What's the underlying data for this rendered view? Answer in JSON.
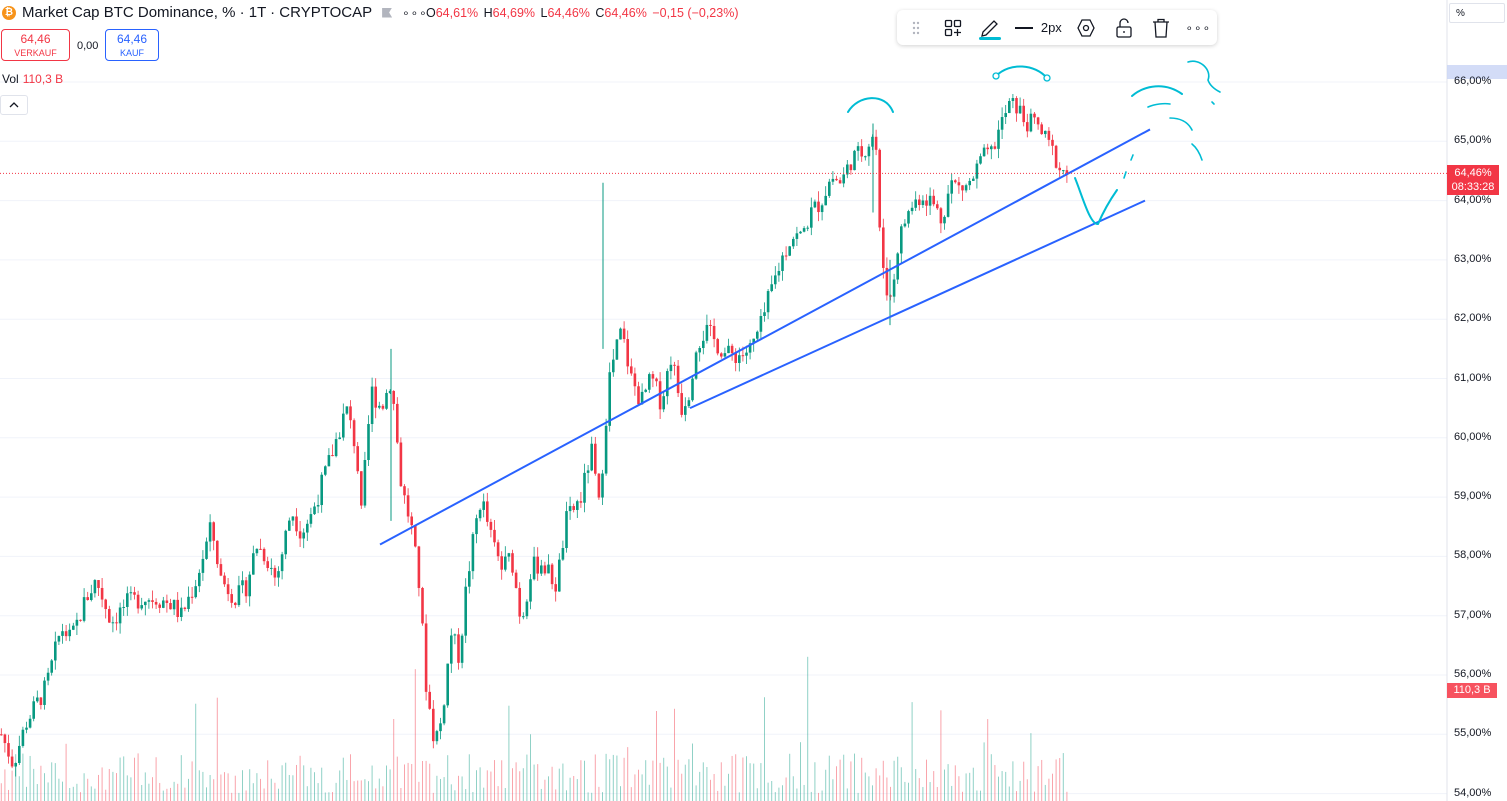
{
  "header": {
    "coin_icon": "bitcoin-icon",
    "coin_glyph": "₿",
    "title": "Market Cap BTC Dominance, % · 1T · CRYPTOCAP",
    "more": "∘∘∘"
  },
  "ohlc": {
    "o_label": "O",
    "o_value": "64,61%",
    "h_label": "H",
    "h_value": "64,69%",
    "l_label": "L",
    "l_value": "64,46%",
    "c_label": "C",
    "c_value": "64,46%",
    "change": "−0,15 (−0,23%)"
  },
  "trade": {
    "sell_price": "64,46",
    "sell_label": "VERKAUF",
    "spread": "0,00",
    "buy_price": "64,46",
    "buy_label": "KAUF"
  },
  "volume": {
    "label": "Vol",
    "value": "110,3 B"
  },
  "toolbar": {
    "drag_icon": "drag-handle-icon",
    "template_icon": "drawing-template-icon",
    "brush_icon": "pencil-icon",
    "line_width_label": "2px",
    "settings_icon": "hexagon-settings-icon",
    "lock_icon": "unlock-icon",
    "delete_icon": "trash-icon",
    "more_icon": "more-icon",
    "more": "∘∘∘",
    "brush_color": "#00bcd4"
  },
  "axis": {
    "unit": "%",
    "last_price": "64,46%",
    "countdown": "08:33:28",
    "volume_tag": "110,3 B"
  },
  "colors": {
    "up": "#089981",
    "down": "#f23645",
    "trend": "#2962ff",
    "drawing": "#00bcd4"
  },
  "chart_data": {
    "type": "candlestick",
    "title": "Market Cap BTC Dominance, % · 1T · CRYPTOCAP",
    "y_unit": "%",
    "ylim": [
      54,
      66.3
    ],
    "y_ticks": [
      "54,00%",
      "55,00%",
      "56,00%",
      "57,00%",
      "58,00%",
      "59,00%",
      "60,00%",
      "61,00%",
      "62,00%",
      "63,00%",
      "64,00%",
      "65,00%",
      "66,00%"
    ],
    "last_value": 64.46,
    "close_path": [
      [
        0,
        55.0
      ],
      [
        12,
        54.5
      ],
      [
        25,
        55.2
      ],
      [
        45,
        55.8
      ],
      [
        60,
        56.8
      ],
      [
        70,
        56.6
      ],
      [
        85,
        57.3
      ],
      [
        95,
        57.6
      ],
      [
        110,
        56.9
      ],
      [
        125,
        57.2
      ],
      [
        140,
        57.3
      ],
      [
        155,
        57.3
      ],
      [
        170,
        57.2
      ],
      [
        180,
        57.0
      ],
      [
        195,
        57.6
      ],
      [
        210,
        58.5
      ],
      [
        220,
        57.6
      ],
      [
        235,
        57.3
      ],
      [
        245,
        57.5
      ],
      [
        255,
        58.2
      ],
      [
        265,
        58.0
      ],
      [
        275,
        57.6
      ],
      [
        290,
        58.8
      ],
      [
        300,
        58.4
      ],
      [
        310,
        58.7
      ],
      [
        320,
        59.2
      ],
      [
        330,
        59.7
      ],
      [
        345,
        60.5
      ],
      [
        355,
        59.8
      ],
      [
        360,
        58.7
      ],
      [
        370,
        60.8
      ],
      [
        380,
        60.5
      ],
      [
        390,
        61.0
      ],
      [
        400,
        59.2
      ],
      [
        410,
        58.5
      ],
      [
        418,
        57.5
      ],
      [
        425,
        55.8
      ],
      [
        433,
        54.9
      ],
      [
        440,
        55.2
      ],
      [
        450,
        56.7
      ],
      [
        458,
        56.3
      ],
      [
        465,
        57.5
      ],
      [
        475,
        58.6
      ],
      [
        480,
        59.0
      ],
      [
        490,
        58.3
      ],
      [
        500,
        57.8
      ],
      [
        510,
        58.0
      ],
      [
        520,
        56.9
      ],
      [
        530,
        57.8
      ],
      [
        540,
        57.9
      ],
      [
        548,
        57.7
      ],
      [
        555,
        57.5
      ],
      [
        565,
        58.6
      ],
      [
        580,
        59.0
      ],
      [
        590,
        59.8
      ],
      [
        598,
        58.8
      ],
      [
        603,
        60.0
      ],
      [
        608,
        61.0
      ],
      [
        615,
        61.5
      ],
      [
        620,
        61.8
      ],
      [
        630,
        61.0
      ],
      [
        640,
        60.6
      ],
      [
        650,
        61.0
      ],
      [
        660,
        60.6
      ],
      [
        670,
        61.4
      ],
      [
        680,
        60.5
      ],
      [
        688,
        60.8
      ],
      [
        695,
        61.6
      ],
      [
        705,
        61.8
      ],
      [
        715,
        61.6
      ],
      [
        725,
        61.4
      ],
      [
        740,
        61.4
      ],
      [
        750,
        61.5
      ],
      [
        760,
        61.9
      ],
      [
        770,
        62.5
      ],
      [
        780,
        63.0
      ],
      [
        790,
        63.4
      ],
      [
        800,
        63.4
      ],
      [
        810,
        63.8
      ],
      [
        820,
        64.0
      ],
      [
        830,
        64.4
      ],
      [
        840,
        64.3
      ],
      [
        850,
        64.7
      ],
      [
        860,
        64.8
      ],
      [
        868,
        65.0
      ],
      [
        874,
        65.2
      ],
      [
        878,
        63.5
      ],
      [
        884,
        62.6
      ],
      [
        890,
        62.3
      ],
      [
        896,
        63.2
      ],
      [
        902,
        63.6
      ],
      [
        910,
        63.9
      ],
      [
        920,
        64.1
      ],
      [
        930,
        64.0
      ],
      [
        940,
        63.7
      ],
      [
        950,
        64.3
      ],
      [
        960,
        64.2
      ],
      [
        970,
        64.3
      ],
      [
        980,
        64.7
      ],
      [
        990,
        64.8
      ],
      [
        1000,
        65.3
      ],
      [
        1008,
        65.6
      ],
      [
        1015,
        65.6
      ],
      [
        1025,
        65.3
      ],
      [
        1035,
        65.3
      ],
      [
        1045,
        65.0
      ],
      [
        1052,
        64.8
      ],
      [
        1060,
        64.5
      ],
      [
        1068,
        64.46
      ]
    ],
    "trendlines": [
      {
        "from": [
          380,
          58.2
        ],
        "to": [
          1150,
          65.2
        ]
      },
      {
        "from": [
          690,
          60.5
        ],
        "to": [
          1145,
          64.0
        ]
      }
    ]
  }
}
